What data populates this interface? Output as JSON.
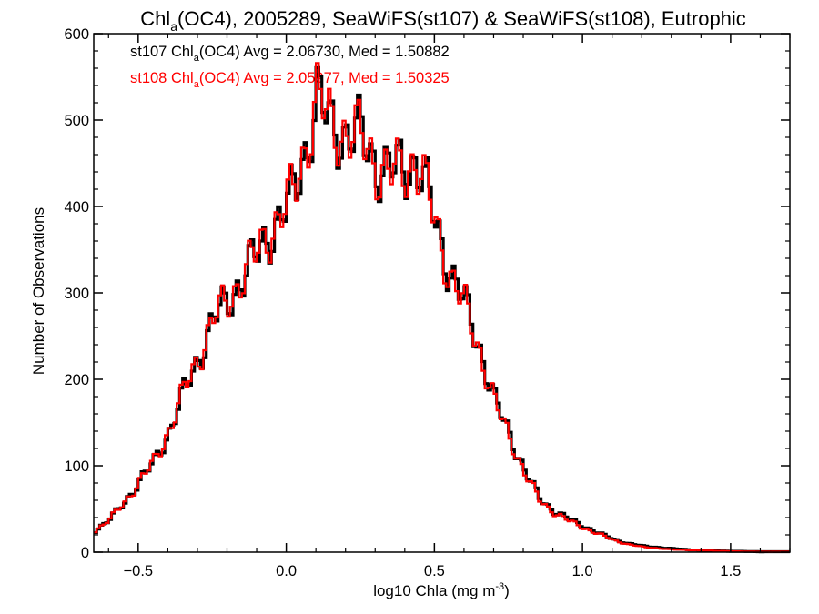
{
  "chart_data": {
    "type": "line",
    "title": {
      "prefix": "Chl",
      "subscript": "a",
      "rest": "(OC4), 2005289, SeaWiFS(st107) & SeaWiFS(st108), Eutrophic"
    },
    "xlabel": {
      "text": "log10 Chla (mg m",
      "superscript": "-3",
      "suffix": ")"
    },
    "ylabel": "Number of Observations",
    "xlim": [
      -0.65,
      1.7
    ],
    "ylim": [
      0,
      600
    ],
    "x_ticks": [
      -0.5,
      0.0,
      0.5,
      1.0,
      1.5
    ],
    "x_tick_labels": [
      "−0.5",
      "0.0",
      "0.5",
      "1.0",
      "1.5"
    ],
    "y_ticks": [
      0,
      100,
      200,
      300,
      400,
      500,
      600
    ],
    "y_tick_labels": [
      "0",
      "100",
      "200",
      "300",
      "400",
      "500",
      "600"
    ],
    "grid": false,
    "legend_position": "top-left",
    "series": [
      {
        "name": "st107",
        "color": "#000000",
        "legend": {
          "pre": "st107 Chl",
          "sub": "a",
          "post": "(OC4) Avg = 2.06730, Med = 1.50882"
        },
        "points": [
          [
            -0.65,
            25
          ],
          [
            -0.6,
            38
          ],
          [
            -0.55,
            58
          ],
          [
            -0.5,
            82
          ],
          [
            -0.45,
            105
          ],
          [
            -0.4,
            140
          ],
          [
            -0.35,
            185
          ],
          [
            -0.3,
            225
          ],
          [
            -0.25,
            270
          ],
          [
            -0.2,
            290
          ],
          [
            -0.15,
            320
          ],
          [
            -0.1,
            345
          ],
          [
            -0.05,
            375
          ],
          [
            0.0,
            400
          ],
          [
            0.03,
            425
          ],
          [
            0.07,
            480
          ],
          [
            0.1,
            525
          ],
          [
            0.12,
            510
          ],
          [
            0.15,
            490
          ],
          [
            0.2,
            485
          ],
          [
            0.25,
            480
          ],
          [
            0.3,
            450
          ],
          [
            0.35,
            440
          ],
          [
            0.4,
            445
          ],
          [
            0.43,
            455
          ],
          [
            0.45,
            440
          ],
          [
            0.48,
            405
          ],
          [
            0.52,
            355
          ],
          [
            0.55,
            325
          ],
          [
            0.6,
            285
          ],
          [
            0.65,
            235
          ],
          [
            0.7,
            175
          ],
          [
            0.75,
            135
          ],
          [
            0.8,
            95
          ],
          [
            0.85,
            62
          ],
          [
            0.9,
            48
          ],
          [
            0.95,
            38
          ],
          [
            1.0,
            30
          ],
          [
            1.05,
            22
          ],
          [
            1.1,
            15
          ],
          [
            1.15,
            10
          ],
          [
            1.2,
            7
          ],
          [
            1.3,
            4
          ],
          [
            1.4,
            2
          ],
          [
            1.5,
            1
          ],
          [
            1.6,
            0.5
          ],
          [
            1.7,
            0.5
          ]
        ]
      },
      {
        "name": "st108",
        "color": "#ff0000",
        "legend": {
          "pre": "st108 Chl",
          "sub": "a",
          "post": "(OC4) Avg = 2.05977, Med = 1.50325"
        },
        "points": [
          [
            -0.65,
            25
          ],
          [
            -0.6,
            38
          ],
          [
            -0.55,
            58
          ],
          [
            -0.5,
            82
          ],
          [
            -0.45,
            105
          ],
          [
            -0.4,
            142
          ],
          [
            -0.35,
            186
          ],
          [
            -0.3,
            226
          ],
          [
            -0.25,
            271
          ],
          [
            -0.2,
            291
          ],
          [
            -0.15,
            322
          ],
          [
            -0.1,
            347
          ],
          [
            -0.05,
            377
          ],
          [
            0.0,
            402
          ],
          [
            0.03,
            428
          ],
          [
            0.07,
            484
          ],
          [
            0.1,
            528
          ],
          [
            0.12,
            512
          ],
          [
            0.15,
            492
          ],
          [
            0.2,
            487
          ],
          [
            0.25,
            478
          ],
          [
            0.3,
            448
          ],
          [
            0.35,
            437
          ],
          [
            0.4,
            443
          ],
          [
            0.43,
            456
          ],
          [
            0.45,
            442
          ],
          [
            0.48,
            404
          ],
          [
            0.52,
            352
          ],
          [
            0.55,
            322
          ],
          [
            0.6,
            282
          ],
          [
            0.65,
            232
          ],
          [
            0.7,
            172
          ],
          [
            0.75,
            132
          ],
          [
            0.8,
            92
          ],
          [
            0.85,
            60
          ],
          [
            0.9,
            46
          ],
          [
            0.95,
            36
          ],
          [
            1.0,
            28
          ],
          [
            1.05,
            21
          ],
          [
            1.1,
            14
          ],
          [
            1.15,
            9
          ],
          [
            1.2,
            6
          ],
          [
            1.3,
            3
          ],
          [
            1.4,
            2
          ],
          [
            1.5,
            1
          ],
          [
            1.6,
            0.5
          ],
          [
            1.7,
            0.5
          ]
        ]
      }
    ]
  }
}
